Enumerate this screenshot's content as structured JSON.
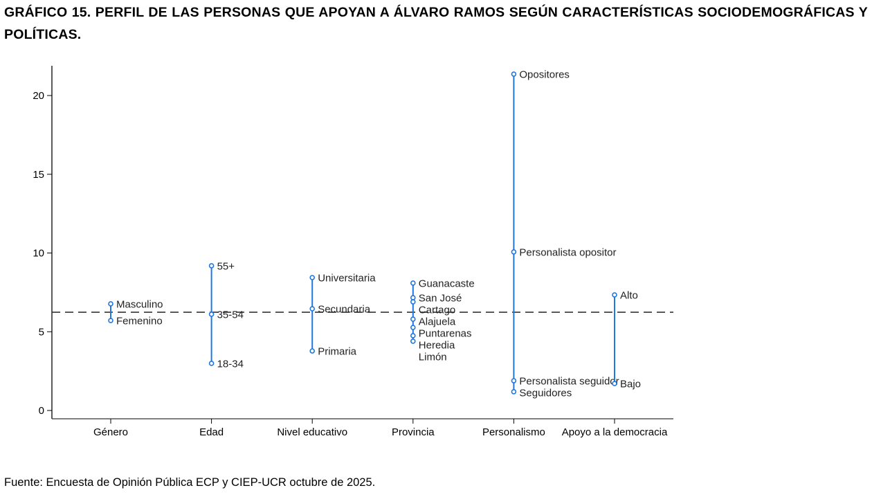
{
  "title": "GRÁFICO 15. PERFIL DE LAS PERSONAS QUE APOYAN A ÁLVARO RAMOS SEGÚN CARACTERÍSTICAS SOCIODEMOGRÁFICAS Y POLÍTICAS.",
  "source": "Fuente: Encuesta de Opinión Pública ECP y CIEP-UCR octubre de 2025.",
  "chart_data": {
    "type": "dot-range",
    "title": "",
    "xlabel": "",
    "ylabel": "",
    "ylim": [
      -0.5,
      22
    ],
    "yticks": [
      0,
      5,
      10,
      15,
      20
    ],
    "grid": false,
    "reference_line": {
      "value": 6.24,
      "style": "dashed"
    },
    "color": "#1f77e0",
    "categories": [
      "Género",
      "Edad",
      "Nivel educativo",
      "Provincia",
      "Personalismo",
      "Apoyo a la democracia"
    ],
    "groups": [
      {
        "category": "Género",
        "points": [
          {
            "label": "Masculino",
            "value": 6.77
          },
          {
            "label": "Femenino",
            "value": 5.71
          }
        ]
      },
      {
        "category": "Edad",
        "points": [
          {
            "label": "55+",
            "value": 9.19
          },
          {
            "label": "35-54",
            "value": 6.11
          },
          {
            "label": "18-34",
            "value": 2.99
          }
        ]
      },
      {
        "category": "Nivel educativo",
        "points": [
          {
            "label": "Universitaria",
            "value": 8.44
          },
          {
            "label": "Secundaria",
            "value": 6.46
          },
          {
            "label": "Primaria",
            "value": 3.78
          }
        ]
      },
      {
        "category": "Provincia",
        "points": [
          {
            "label": "Guanacaste",
            "value": 8.09
          },
          {
            "label": "San José",
            "value": 7.16
          },
          {
            "label": "Cartago",
            "value": 6.9
          },
          {
            "label": "Alajuela",
            "value": 5.8
          },
          {
            "label": "Puntarenas",
            "value": 5.27
          },
          {
            "label": "Heredia",
            "value": 4.75
          },
          {
            "label": "Limón",
            "value": 4.4
          }
        ]
      },
      {
        "category": "Personalismo",
        "points": [
          {
            "label": "Opositores",
            "value": 21.36
          },
          {
            "label": "Personalista opositor",
            "value": 10.07
          },
          {
            "label": "Personalista seguidor",
            "value": 1.89
          },
          {
            "label": "Seguidores",
            "value": 1.19
          }
        ]
      },
      {
        "category": "Apoyo a la democracia",
        "points": [
          {
            "label": "Alto",
            "value": 7.34
          },
          {
            "label": "Bajo",
            "value": 1.71
          }
        ]
      }
    ]
  }
}
